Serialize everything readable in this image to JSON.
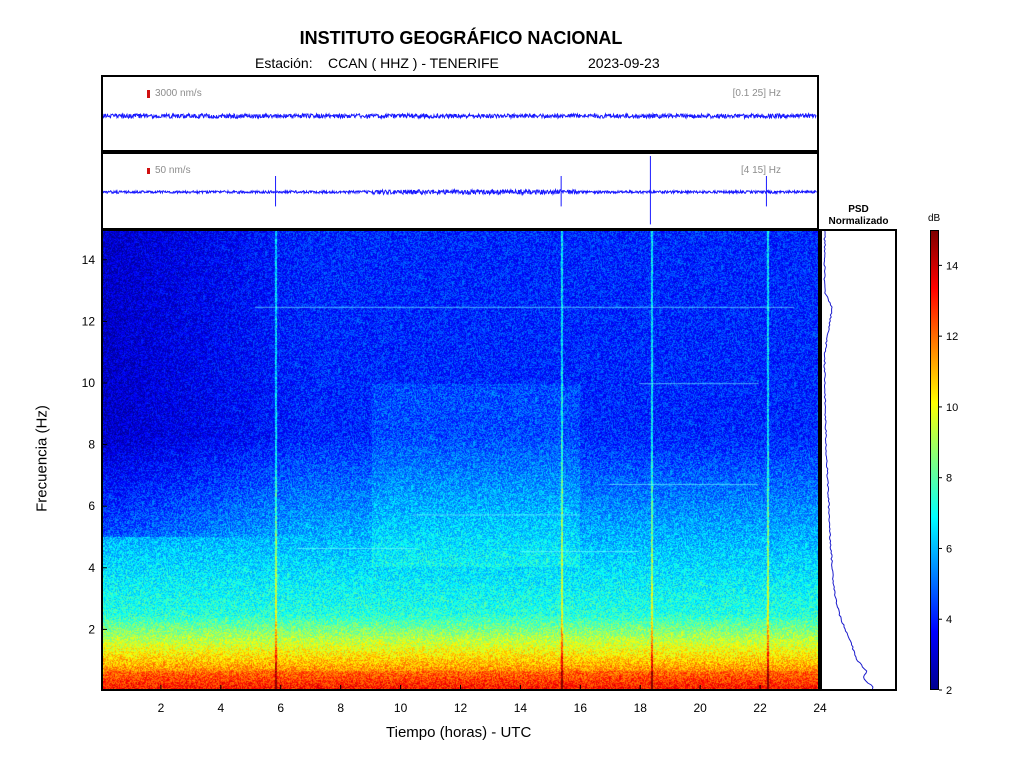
{
  "header": {
    "title": "INSTITUTO GEOGRÁFICO NACIONAL",
    "station_prefix": "Estación:",
    "station": "CCAN ( HHZ ) - TENERIFE",
    "date": "2023-09-23"
  },
  "traces": [
    {
      "scale": "3000 nm/s",
      "band": "[0.1 25] Hz"
    },
    {
      "scale": "50 nm/s",
      "band": "[4 15] Hz"
    }
  ],
  "psd": {
    "title_line1": "PSD",
    "title_line2": "Normalizado"
  },
  "colorbar": {
    "unit": "dB",
    "ticks": [
      "2",
      "4",
      "6",
      "8",
      "10",
      "12",
      "14"
    ]
  },
  "chart_data": {
    "type": "heatmap",
    "xlabel": "Tiempo (horas) - UTC",
    "ylabel": "Frecuencia  (Hz)",
    "xlim": [
      0,
      24
    ],
    "ylim": [
      0,
      15
    ],
    "x_ticks": [
      "2",
      "4",
      "6",
      "8",
      "10",
      "12",
      "14",
      "16",
      "18",
      "20",
      "22",
      "24"
    ],
    "y_ticks": [
      "2",
      "4",
      "6",
      "8",
      "10",
      "12",
      "14"
    ],
    "color_range_db": [
      2,
      15
    ],
    "spike_times_h": [
      5.8,
      15.4,
      18.4,
      22.3
    ],
    "psd_normalized": {
      "freq_hz": [
        0.1,
        0.3,
        0.6,
        1.0,
        1.5,
        2.0,
        2.5,
        3.0,
        3.5,
        4.0,
        5.0,
        6.0,
        7.0,
        8.0,
        9.0,
        10.0,
        11.0,
        12.5,
        13.0,
        14.0,
        15.0
      ],
      "value": [
        0.72,
        0.58,
        0.62,
        0.47,
        0.4,
        0.3,
        0.22,
        0.17,
        0.14,
        0.12,
        0.09,
        0.07,
        0.05,
        0.03,
        0.02,
        0.01,
        0.01,
        0.12,
        0.01,
        0.01,
        0.01
      ]
    }
  }
}
